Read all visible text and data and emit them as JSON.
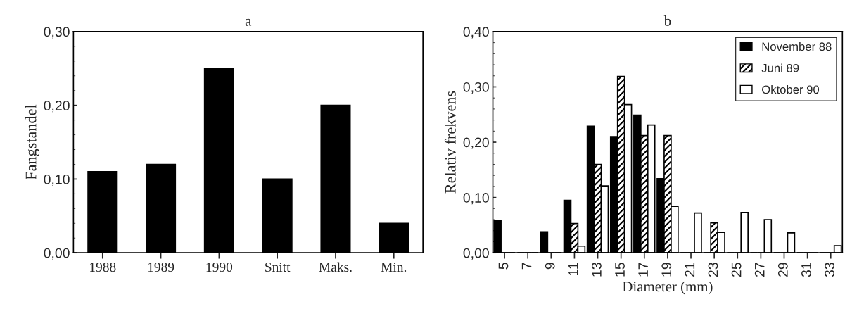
{
  "chart_data": [
    {
      "type": "bar",
      "title": "a",
      "ylabel": "Fangstandel",
      "categories": [
        "1988",
        "1989",
        "1990",
        "Snitt",
        "Maks.",
        "Min."
      ],
      "series": [
        {
          "color": "#000000",
          "values": [
            0.11,
            0.12,
            0.25,
            0.1,
            0.2,
            0.04
          ]
        }
      ],
      "ylim": [
        0,
        0.3
      ],
      "yticks": [
        {
          "value": 0,
          "label": "0,00"
        },
        {
          "value": 0.1,
          "label": "0,10"
        },
        {
          "value": 0.2,
          "label": "0,20"
        },
        {
          "value": 0.3,
          "label": "0,30"
        }
      ],
      "grid": false,
      "legend": false
    },
    {
      "type": "bar",
      "title": "b",
      "xlabel": "Diameter (mm)",
      "ylabel": "Relativ frekvens",
      "categories": [
        "5",
        "7",
        "9",
        "11",
        "13",
        "15",
        "17",
        "19",
        "21",
        "23",
        "25",
        "27",
        "29",
        "31",
        "33"
      ],
      "series": [
        {
          "name": "November 88",
          "color": "#000000",
          "values": [
            0.058,
            0,
            0.038,
            0.095,
            0.229,
            0.21,
            0.249,
            0.134,
            0,
            0,
            0,
            0,
            0,
            0,
            0
          ]
        },
        {
          "name": "Juni 89",
          "color": "#000000",
          "values": [
            0,
            0,
            0,
            0.053,
            0.16,
            0.319,
            0.212,
            0.212,
            0,
            0.054,
            0,
            0,
            0,
            0,
            0
          ]
        },
        {
          "name": "Oktober 90",
          "color": "#ffffff",
          "values": [
            0,
            0,
            0,
            0.012,
            0.121,
            0.268,
            0.231,
            0.084,
            0.072,
            0.037,
            0.073,
            0.06,
            0.036,
            0,
            0.013
          ]
        }
      ],
      "ylim": [
        0,
        0.4
      ],
      "yticks": [
        {
          "value": 0,
          "label": "0,00"
        },
        {
          "value": 0.1,
          "label": "0,10"
        },
        {
          "value": 0.2,
          "label": "0,20"
        },
        {
          "value": 0.3,
          "label": "0,30"
        },
        {
          "value": 0.4,
          "label": "0,40"
        }
      ],
      "grid": false,
      "legend": "top right"
    }
  ]
}
